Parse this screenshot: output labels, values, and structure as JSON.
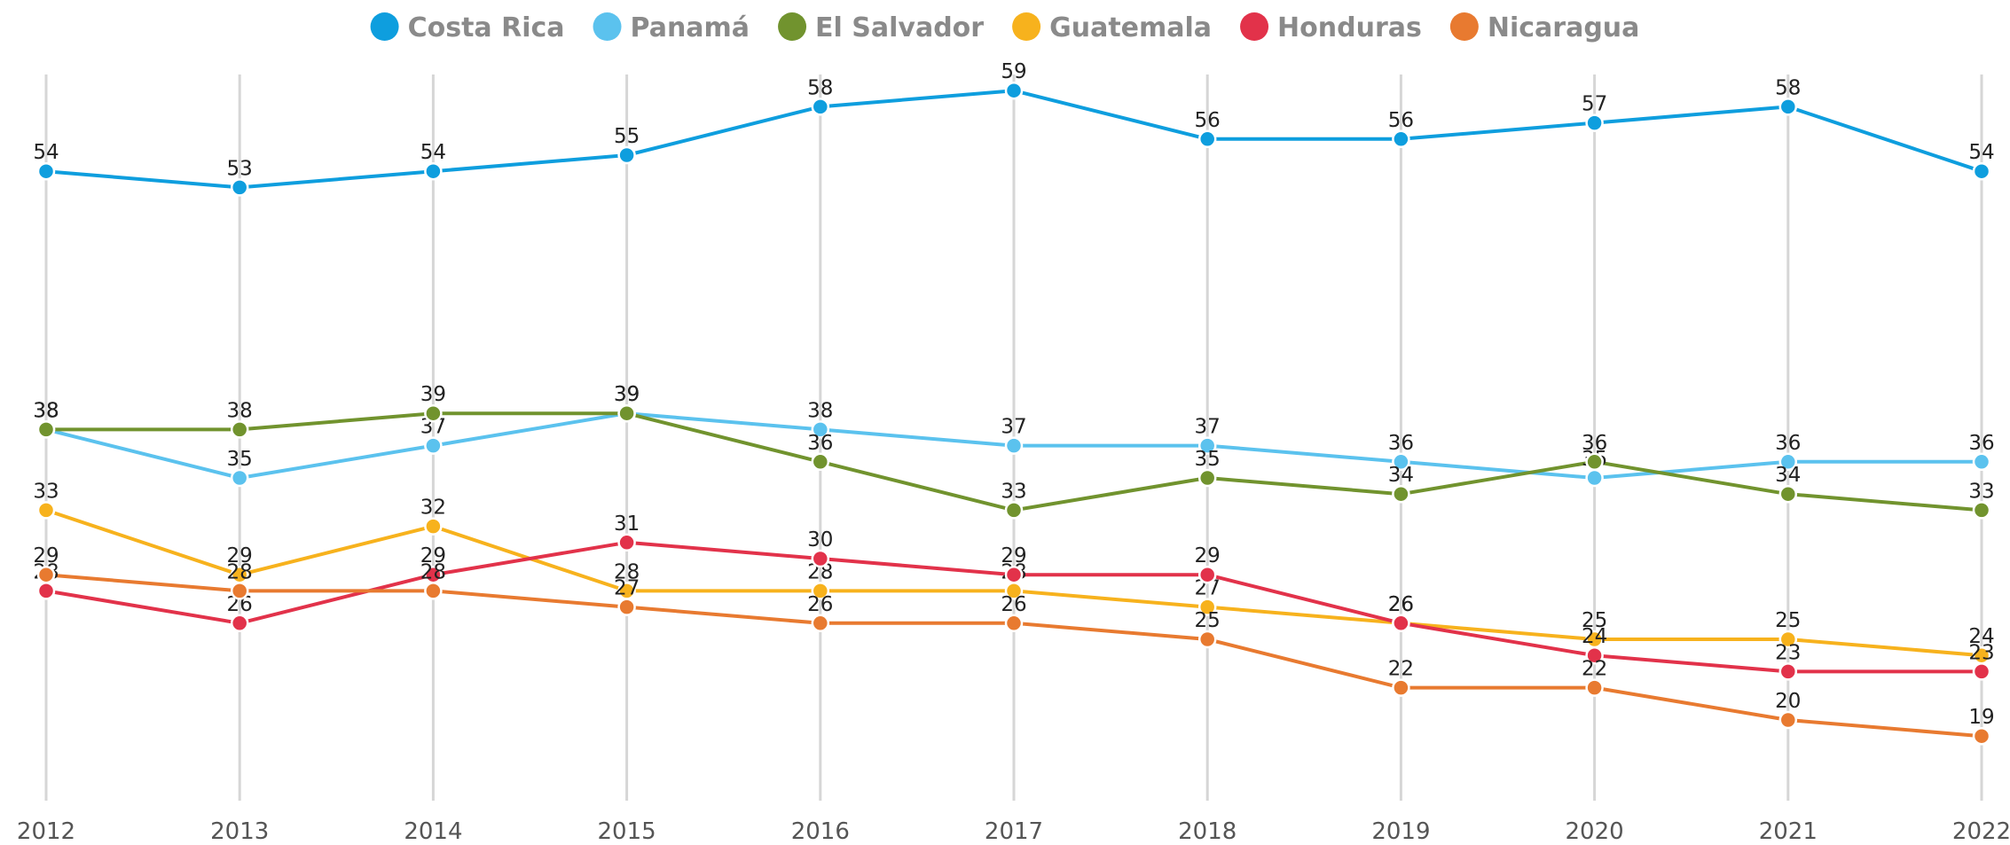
{
  "chart_data": {
    "type": "line",
    "x": [
      2012,
      2013,
      2014,
      2015,
      2016,
      2017,
      2018,
      2019,
      2020,
      2021,
      2022
    ],
    "xlim": [
      2012,
      2022
    ],
    "xticks": [
      2012,
      2013,
      2014,
      2015,
      2016,
      2017,
      2018,
      2019,
      2020,
      2021,
      2022
    ],
    "ylim": [
      15,
      60
    ],
    "grid": true,
    "legend": "top",
    "series": [
      {
        "name": "Costa Rica",
        "color": "#0e9ede",
        "values": [
          54,
          53,
          54,
          55,
          58,
          59,
          56,
          56,
          57,
          58,
          54
        ]
      },
      {
        "name": "Panamá",
        "color": "#5bc2ee",
        "values": [
          38,
          35,
          37,
          39,
          38,
          37,
          37,
          36,
          35,
          36,
          36
        ]
      },
      {
        "name": "El Salvador",
        "color": "#71932e",
        "values": [
          38,
          38,
          39,
          39,
          36,
          33,
          35,
          34,
          36,
          34,
          33
        ]
      },
      {
        "name": "Guatemala",
        "color": "#f7b21d",
        "values": [
          33,
          29,
          32,
          28,
          28,
          28,
          27,
          26,
          25,
          25,
          24
        ]
      },
      {
        "name": "Honduras",
        "color": "#e2324a",
        "values": [
          28,
          26,
          29,
          31,
          30,
          29,
          29,
          26,
          24,
          23,
          23
        ]
      },
      {
        "name": "Nicaragua",
        "color": "#e87a30",
        "values": [
          29,
          28,
          28,
          27,
          26,
          26,
          25,
          22,
          22,
          20,
          19
        ]
      }
    ]
  }
}
